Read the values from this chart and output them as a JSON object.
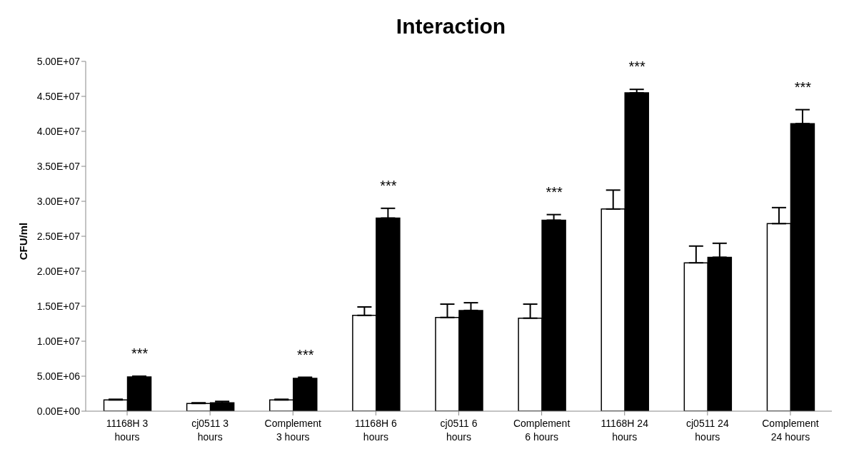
{
  "chart_data": {
    "type": "bar",
    "title": "Interaction",
    "ylabel": "CFU/ml",
    "categories": [
      "11168H 3 hours",
      "cj0511 3 hours",
      "Complement 3 hours",
      "11168H 6 hours",
      "cj0511 6 hours",
      "Complement 6 hours",
      "11168H 24 hours",
      "cj0511 24 hours",
      "Complement 24 hours"
    ],
    "series": [
      {
        "color": "#ffffff",
        "values": [
          1600000,
          1100000,
          1600000,
          13700000,
          13400000,
          13300000,
          28900000,
          21200000,
          26800000
        ],
        "errors": [
          [
            1600000,
            1700000
          ],
          [
            1100000,
            1200000
          ],
          [
            1600000,
            1700000
          ],
          [
            13700000,
            14900000
          ],
          [
            13400000,
            15300000
          ],
          [
            13300000,
            15300000
          ],
          [
            28900000,
            31600000
          ],
          [
            21200000,
            23600000
          ],
          [
            26800000,
            29100000
          ]
        ]
      },
      {
        "color": "#000000",
        "values": [
          4900000,
          1200000,
          4700000,
          27600000,
          14400000,
          27300000,
          45500000,
          22000000,
          41100000
        ],
        "errors": [
          [
            4900000,
            5000000
          ],
          [
            1200000,
            1400000
          ],
          [
            4700000,
            4850000
          ],
          [
            27600000,
            29000000
          ],
          [
            14400000,
            15500000
          ],
          [
            27300000,
            28100000
          ],
          [
            45500000,
            46000000
          ],
          [
            22000000,
            24000000
          ],
          [
            41100000,
            43100000
          ]
        ]
      }
    ],
    "ylim": [
      0,
      50000000
    ],
    "yticks": [
      {
        "value": 0,
        "label": "0.00E+00"
      },
      {
        "value": 5000000,
        "label": "5.00E+06"
      },
      {
        "value": 10000000,
        "label": "1.00E+07"
      },
      {
        "value": 15000000,
        "label": "1.50E+07"
      },
      {
        "value": 20000000,
        "label": "2.00E+07"
      },
      {
        "value": 25000000,
        "label": "2.50E+07"
      },
      {
        "value": 30000000,
        "label": "3.00E+07"
      },
      {
        "value": 35000000,
        "label": "3.50E+07"
      },
      {
        "value": 40000000,
        "label": "4.00E+07"
      },
      {
        "value": 45000000,
        "label": "4.50E+07"
      },
      {
        "value": 50000000,
        "label": "5.00E+07"
      }
    ],
    "grid": false,
    "legend": false,
    "annotations": [
      "***",
      "***",
      "***",
      "***",
      "***",
      "***"
    ]
  }
}
